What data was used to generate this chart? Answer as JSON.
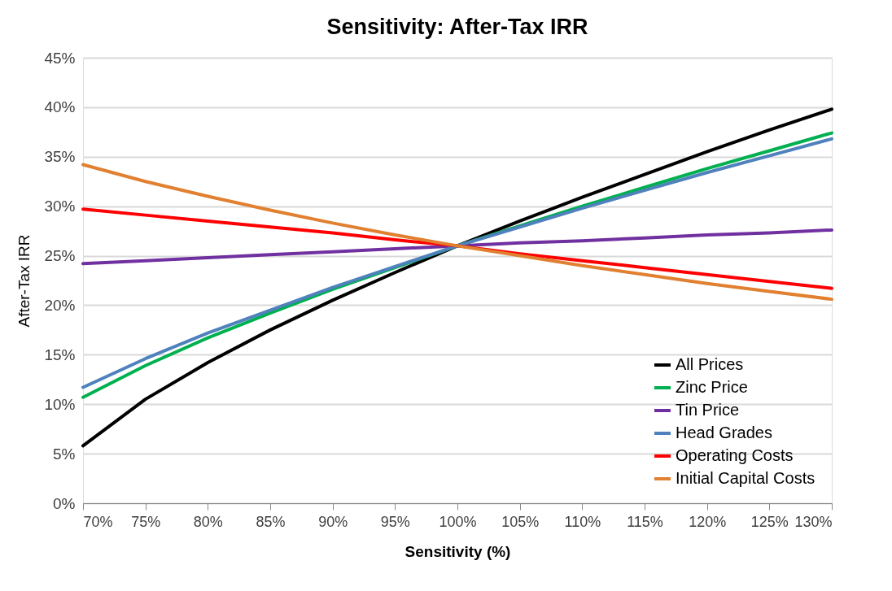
{
  "chart_data": {
    "type": "line",
    "title": "Sensitivity: After-Tax IRR",
    "xlabel": "Sensitivity (%)",
    "ylabel": "After-Tax IRR",
    "x": [
      70,
      75,
      80,
      85,
      90,
      95,
      100,
      105,
      110,
      115,
      120,
      125,
      130
    ],
    "series": [
      {
        "name": "All Prices",
        "color": "#000000",
        "values": [
          5.8,
          10.5,
          14.2,
          17.5,
          20.5,
          23.3,
          26.0,
          28.5,
          30.9,
          33.2,
          35.5,
          37.7,
          39.8
        ]
      },
      {
        "name": "Zinc Price",
        "color": "#00b050",
        "values": [
          10.7,
          13.9,
          16.7,
          19.2,
          21.6,
          23.8,
          26.0,
          28.0,
          30.0,
          31.9,
          33.8,
          35.6,
          37.4
        ]
      },
      {
        "name": "Tin Price",
        "color": "#7030a0",
        "values": [
          24.2,
          24.5,
          24.8,
          25.1,
          25.4,
          25.7,
          26.0,
          26.3,
          26.5,
          26.8,
          27.1,
          27.3,
          27.6
        ]
      },
      {
        "name": "Head Grades",
        "color": "#4f81bd",
        "values": [
          11.7,
          14.6,
          17.2,
          19.5,
          21.8,
          23.9,
          26.0,
          27.9,
          29.8,
          31.6,
          33.4,
          35.1,
          36.8
        ]
      },
      {
        "name": "Operating Costs",
        "color": "#ff0000",
        "values": [
          29.7,
          29.1,
          28.5,
          27.9,
          27.3,
          26.6,
          26.0,
          25.2,
          24.5,
          23.8,
          23.1,
          22.4,
          21.7
        ]
      },
      {
        "name": "Initial Capital Costs",
        "color": "#e08030",
        "values": [
          34.2,
          32.5,
          31.0,
          29.6,
          28.3,
          27.1,
          26.0,
          25.0,
          24.0,
          23.1,
          22.2,
          21.4,
          20.6
        ]
      }
    ],
    "xlim": [
      70,
      130
    ],
    "xticks": [
      {
        "value": 70,
        "label": "70%"
      },
      {
        "value": 75,
        "label": "75%"
      },
      {
        "value": 80,
        "label": "80%"
      },
      {
        "value": 85,
        "label": "85%"
      },
      {
        "value": 90,
        "label": "90%"
      },
      {
        "value": 95,
        "label": "95%"
      },
      {
        "value": 100,
        "label": "100%"
      },
      {
        "value": 105,
        "label": "105%"
      },
      {
        "value": 110,
        "label": "110%"
      },
      {
        "value": 115,
        "label": "115%"
      },
      {
        "value": 120,
        "label": "120%"
      },
      {
        "value": 125,
        "label": "125%"
      },
      {
        "value": 130,
        "label": "130%"
      }
    ],
    "ylim": [
      0,
      45
    ],
    "yticks": [
      {
        "value": 0,
        "label": "0%"
      },
      {
        "value": 5,
        "label": "5%"
      },
      {
        "value": 10,
        "label": "10%"
      },
      {
        "value": 15,
        "label": "15%"
      },
      {
        "value": 20,
        "label": "20%"
      },
      {
        "value": 25,
        "label": "25%"
      },
      {
        "value": 30,
        "label": "30%"
      },
      {
        "value": 35,
        "label": "35%"
      },
      {
        "value": 40,
        "label": "40%"
      },
      {
        "value": 45,
        "label": "45%"
      }
    ],
    "grid": "y",
    "legend": "bottom right",
    "marker": "none",
    "line_style": "solid"
  }
}
